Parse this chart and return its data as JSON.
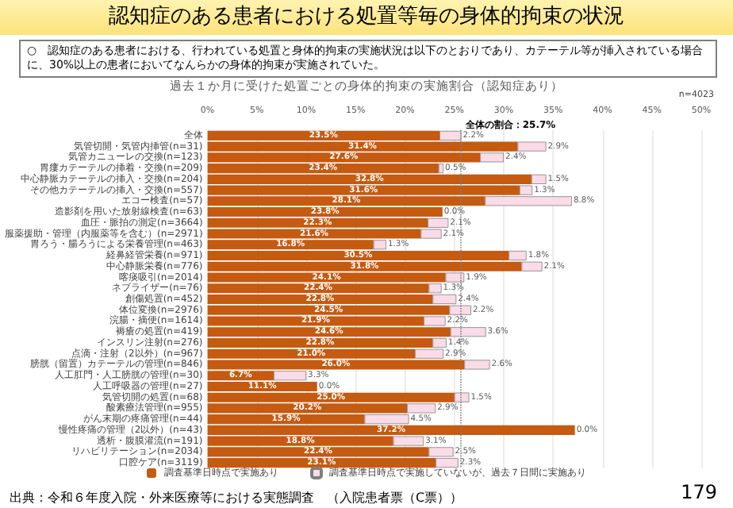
{
  "chart_data": {
    "type": "bar",
    "orientation": "horizontal",
    "stacked": true,
    "title": "認知症のある患者における処置等毎の身体的拘束の状況",
    "subtitle": "○　認知症のある患者における、行われている処置と身体的拘束の実施状況は以下のとおりであり、カテーテル等が挿入されている場合に、30%以上の患者においてなんらかの身体的拘束が実施されていた。",
    "annotations": [
      "過去１か月に受けた処置ごとの身体的拘束の実施割合（認知症あり）",
      "n=4023",
      "出典：令和６年度入院・外来医療等における実態調査　（入院患者票（C票））",
      "179"
    ],
    "categories": [
      "全体",
      "気管切開・気管内挿管(n=31)",
      "気管カニューレの交換(n=123)",
      "胃瘻カテーテルの挿着・交換(n=209)",
      "中心静脈カテーテルの挿入・交換(n=204)",
      "その他カテーテルの挿入・交換(n=557)",
      "エコー検査(n=57)",
      "造影剤を用いた放射線検査(n=63)",
      "血圧・脈拍の測定(n=3664)",
      "服薬援助・管理（内服薬等を含む）(n=2971)",
      "胃ろう・腸ろうによる栄養管理(n=463)",
      "経鼻経管栄養(n=971)",
      "中心静脈栄養(n=776)",
      "喀痰吸引(n=2014)",
      "ネブライザー(n=76)",
      "創傷処置(n=452)",
      "体位変換(n=2976)",
      "浣腸・摘便(n=1614)",
      "褥瘡の処置(n=419)",
      "インスリン注射(n=276)",
      "点滴・注射（2以外）(n=967)",
      "膀胱（留置）カテーテルの管理(n=846)",
      "人工肛門・人工膀胱の管理(n=30)",
      "人工呼吸器の管理(n=27)",
      "気管切開の処置(n=68)",
      "酸素療法管理(n=955)",
      "がん末期の疼痛管理(n=44)",
      "慢性疼痛の管理（2以外）(n=43)",
      "透析・腹膜灌流(n=191)",
      "リハビリテーション(n=2034)",
      "口腔ケア(n=3119)"
    ],
    "series": [
      {
        "name": "調査基準日時点で実施あり",
        "color": "#c55a11",
        "values": [
          23.5,
          31.4,
          27.6,
          23.4,
          32.8,
          31.6,
          28.1,
          23.8,
          22.3,
          21.6,
          16.8,
          30.5,
          31.8,
          24.1,
          22.4,
          22.8,
          24.5,
          21.9,
          24.6,
          22.8,
          21.0,
          26.0,
          6.7,
          11.1,
          25.0,
          20.2,
          15.9,
          37.2,
          18.8,
          22.4,
          23.1
        ],
        "value_labels": [
          "23.5%",
          "31.4%",
          "27.6%",
          "23.4%",
          "32.8%",
          "31.6%",
          "28.1%",
          "23.8%",
          "22.3%",
          "21.6%",
          "16.8%",
          "30.5%",
          "31.8%",
          "24.1%",
          "22.4%",
          "22.8%",
          "24.5%",
          "21.9%",
          "24.6%",
          "22.8%",
          "21.0%",
          "26.0%",
          "6.7%",
          "11.1%",
          "25.0%",
          "20.2%",
          "15.9%",
          "37.2%",
          "18.8%",
          "22.4%",
          "23.1%"
        ]
      },
      {
        "name": "調査基準日時点で実施していないが、過去７日間に実施あり",
        "color": "#fadbe8",
        "values": [
          2.2,
          2.9,
          2.4,
          0.5,
          1.5,
          1.3,
          8.8,
          0.0,
          2.1,
          2.1,
          1.3,
          1.8,
          2.1,
          1.9,
          1.3,
          2.4,
          2.2,
          2.2,
          3.6,
          1.4,
          2.9,
          2.6,
          3.3,
          0.0,
          1.5,
          2.9,
          4.5,
          0.0,
          3.1,
          2.5,
          2.3
        ],
        "value_labels": [
          "2.2%",
          "2.9%",
          "2.4%",
          "0.5%",
          "1.5%",
          "1.3%",
          "8.8%",
          "0.0%",
          "2.1%",
          "2.1%",
          "1.3%",
          "1.8%",
          "2.1%",
          "1.9%",
          "1.3%",
          "2.4%",
          "2.2%",
          "2.2%",
          "3.6%",
          "1.4%",
          "2.9%",
          "2.6%",
          "3.3%",
          "0.0%",
          "1.5%",
          "2.9%",
          "4.5%",
          "0.0%",
          "3.1%",
          "2.5%",
          "2.3%"
        ]
      }
    ],
    "xlim": [
      0,
      50
    ],
    "xticks": [
      {
        "value": 0,
        "label": "0%"
      },
      {
        "value": 5,
        "label": "5%"
      },
      {
        "value": 10,
        "label": "10%"
      },
      {
        "value": 15,
        "label": "15%"
      },
      {
        "value": 20,
        "label": "20%"
      },
      {
        "value": 25,
        "label": "25%"
      },
      {
        "value": 30,
        "label": "30%"
      },
      {
        "value": 35,
        "label": "35%"
      },
      {
        "value": 40,
        "label": "40%"
      },
      {
        "value": 45,
        "label": "45%"
      },
      {
        "value": 50,
        "label": "50%"
      }
    ],
    "ref_lines": [
      {
        "axis": "x",
        "value": 25.7,
        "label": "全体の割合：25.7%",
        "color": "#7f7f7f",
        "line_style": "dotted"
      }
    ],
    "grid": "x",
    "legend": "bottom"
  }
}
